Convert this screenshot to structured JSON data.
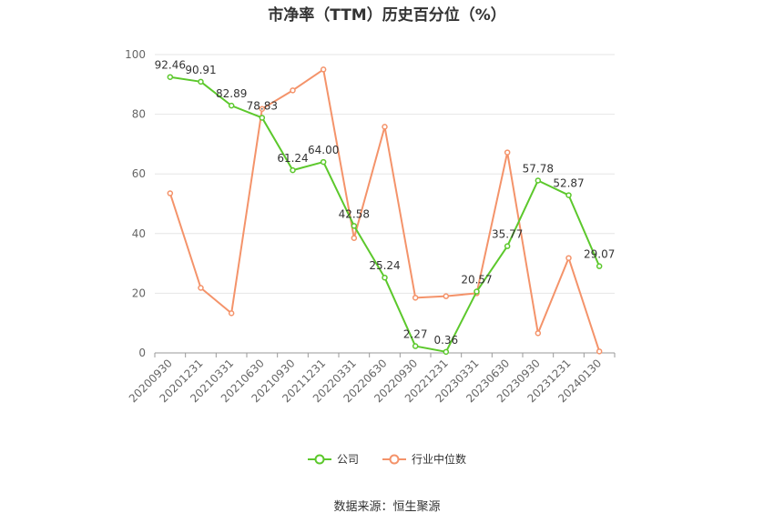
{
  "chart_data": {
    "type": "line",
    "title": "市净率（TTM）历史百分位（%）",
    "categories": [
      "20200930",
      "20201231",
      "20210331",
      "20210630",
      "20210930",
      "20211231",
      "20220331",
      "20220630",
      "20220930",
      "20221231",
      "20230331",
      "20230630",
      "20230930",
      "20231231",
      "20240130"
    ],
    "ylim": [
      0,
      100
    ],
    "yticks": [
      0,
      20,
      40,
      60,
      80,
      100
    ],
    "grid": true,
    "legend_position": "bottom",
    "series": [
      {
        "name": "公司",
        "color": "#5cc82c",
        "values": [
          92.46,
          90.91,
          82.89,
          78.83,
          61.24,
          64.0,
          42.58,
          25.24,
          2.27,
          0.36,
          20.57,
          35.77,
          57.78,
          52.87,
          29.07
        ],
        "labels": [
          "92.46",
          "90.91",
          "82.89",
          "78.83",
          "61.24",
          "64.00",
          "42.58",
          "25.24",
          "2.27",
          "0.36",
          "20.57",
          "35.77",
          "57.78",
          "52.87",
          "29.07"
        ]
      },
      {
        "name": "行业中位数",
        "color": "#f4936a",
        "values": [
          53.5,
          21.8,
          13.3,
          81.8,
          88.0,
          95.0,
          38.5,
          75.8,
          18.5,
          19.0,
          20.0,
          67.2,
          6.6,
          31.8,
          0.5
        ]
      }
    ]
  },
  "source_text": "数据来源：恒生聚源"
}
